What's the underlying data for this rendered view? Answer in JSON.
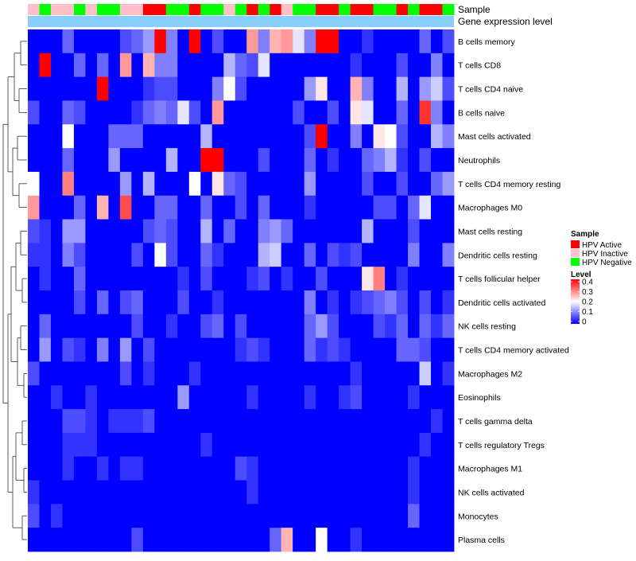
{
  "chart_data": {
    "type": "heatmap",
    "annotation_tracks": [
      "Sample",
      "Gene expression level"
    ],
    "rows": [
      "B cells memory",
      "T cells CD8",
      "T cells CD4 naive",
      "B cells naive",
      "Mast cells activated",
      "Neutrophils",
      "T cells CD4 memory resting",
      "Macrophages M0",
      "Mast cells resting",
      "Dendritic cells resting",
      "T cells follicular helper",
      "Dendritic cells activated",
      "NK cells resting",
      "T cells CD4 memory activated",
      "Macrophages M2",
      "Eosinophils",
      "T cells gamma delta",
      "T cells regulatory  Tregs",
      "Macrophages M1",
      "NK cells activated",
      "Monocytes",
      "Plasma cells"
    ],
    "column_sample_groups": [
      "HPV Inactive",
      "HPV Negative",
      "HPV Inactive",
      "HPV Inactive",
      "HPV Negative",
      "HPV Inactive",
      "HPV Negative",
      "HPV Negative",
      "HPV Inactive",
      "HPV Inactive",
      "HPV Active",
      "HPV Active",
      "HPV Negative",
      "HPV Negative",
      "HPV Active",
      "HPV Negative",
      "HPV Negative",
      "HPV Inactive",
      "HPV Negative",
      "HPV Active",
      "HPV Negative",
      "HPV Active",
      "HPV Inactive",
      "HPV Negative",
      "HPV Negative",
      "HPV Active",
      "HPV Active",
      "HPV Negative",
      "HPV Active",
      "HPV Active",
      "HPV Negative",
      "HPV Negative",
      "HPV Active",
      "HPV Negative",
      "HPV Active",
      "HPV Active",
      "HPV Negative"
    ],
    "values": [
      [
        0.0,
        0.0,
        0.0,
        0.08,
        0.0,
        0.0,
        0.0,
        0.0,
        0.06,
        0.08,
        0.12,
        0.4,
        0.1,
        0.0,
        0.4,
        0.0,
        0.06,
        0.0,
        0.0,
        0.28,
        0.1,
        0.26,
        0.28,
        0.18,
        0.1,
        0.4,
        0.4,
        0.0,
        0.0,
        0.04,
        0.0,
        0.0,
        0.0,
        0.0,
        0.08,
        0.0,
        0.06
      ],
      [
        0.0,
        0.4,
        0.0,
        0.0,
        0.08,
        0.0,
        0.08,
        0.0,
        0.28,
        0.0,
        0.26,
        0.1,
        0.1,
        0.0,
        0.0,
        0.0,
        0.0,
        0.14,
        0.08,
        0.06,
        0.18,
        0.0,
        0.0,
        0.0,
        0.0,
        0.0,
        0.0,
        0.0,
        0.04,
        0.0,
        0.0,
        0.0,
        0.06,
        0.0,
        0.0,
        0.1,
        0.0
      ],
      [
        0.0,
        0.0,
        0.0,
        0.0,
        0.0,
        0.0,
        0.4,
        0.0,
        0.0,
        0.0,
        0.04,
        0.06,
        0.06,
        0.0,
        0.0,
        0.0,
        0.1,
        0.2,
        0.06,
        0.0,
        0.0,
        0.0,
        0.0,
        0.0,
        0.12,
        0.22,
        0.0,
        0.0,
        0.26,
        0.1,
        0.0,
        0.0,
        0.14,
        0.0,
        0.12,
        0.16,
        0.06
      ],
      [
        0.06,
        0.0,
        0.0,
        0.08,
        0.06,
        0.0,
        0.0,
        0.0,
        0.0,
        0.04,
        0.08,
        0.1,
        0.08,
        0.18,
        0.06,
        0.0,
        0.28,
        0.0,
        0.0,
        0.0,
        0.0,
        0.0,
        0.0,
        0.06,
        0.0,
        0.0,
        0.06,
        0.0,
        0.22,
        0.18,
        0.0,
        0.0,
        0.08,
        0.0,
        0.36,
        0.1,
        0.0
      ],
      [
        0.0,
        0.0,
        0.0,
        0.2,
        0.0,
        0.0,
        0.0,
        0.08,
        0.08,
        0.08,
        0.0,
        0.0,
        0.0,
        0.0,
        0.0,
        0.14,
        0.0,
        0.0,
        0.0,
        0.0,
        0.0,
        0.0,
        0.0,
        0.0,
        0.06,
        0.4,
        0.0,
        0.0,
        0.1,
        0.0,
        0.22,
        0.2,
        0.06,
        0.0,
        0.0,
        0.14,
        0.1
      ],
      [
        0.0,
        0.0,
        0.0,
        0.08,
        0.0,
        0.0,
        0.0,
        0.12,
        0.0,
        0.0,
        0.0,
        0.0,
        0.14,
        0.0,
        0.0,
        0.4,
        0.4,
        0.0,
        0.0,
        0.0,
        0.06,
        0.0,
        0.0,
        0.0,
        0.08,
        0.0,
        0.04,
        0.0,
        0.0,
        0.08,
        0.1,
        0.14,
        0.04,
        0.0,
        0.06,
        0.0,
        0.0
      ],
      [
        0.2,
        0.0,
        0.0,
        0.3,
        0.0,
        0.0,
        0.0,
        0.0,
        0.12,
        0.0,
        0.14,
        0.0,
        0.0,
        0.0,
        0.2,
        0.0,
        0.22,
        0.08,
        0.06,
        0.0,
        0.0,
        0.0,
        0.0,
        0.0,
        0.12,
        0.0,
        0.0,
        0.0,
        0.0,
        0.06,
        0.0,
        0.0,
        0.06,
        0.0,
        0.0,
        0.08,
        0.12
      ],
      [
        0.28,
        0.0,
        0.0,
        0.0,
        0.08,
        0.0,
        0.26,
        0.0,
        0.34,
        0.0,
        0.0,
        0.08,
        0.08,
        0.0,
        0.0,
        0.08,
        0.0,
        0.0,
        0.06,
        0.0,
        0.08,
        0.0,
        0.0,
        0.0,
        0.04,
        0.0,
        0.0,
        0.0,
        0.0,
        0.0,
        0.06,
        0.06,
        0.0,
        0.08,
        0.18,
        0.0,
        0.0
      ],
      [
        0.06,
        0.04,
        0.0,
        0.12,
        0.12,
        0.0,
        0.0,
        0.0,
        0.0,
        0.0,
        0.06,
        0.08,
        0.06,
        0.0,
        0.0,
        0.14,
        0.0,
        0.08,
        0.0,
        0.0,
        0.1,
        0.12,
        0.08,
        0.0,
        0.0,
        0.0,
        0.0,
        0.0,
        0.0,
        0.14,
        0.0,
        0.0,
        0.0,
        0.06,
        0.0,
        0.0,
        0.0
      ],
      [
        0.04,
        0.04,
        0.0,
        0.1,
        0.06,
        0.0,
        0.0,
        0.0,
        0.0,
        0.06,
        0.0,
        0.2,
        0.06,
        0.0,
        0.0,
        0.08,
        0.04,
        0.0,
        0.0,
        0.0,
        0.14,
        0.16,
        0.0,
        0.0,
        0.08,
        0.0,
        0.06,
        0.04,
        0.06,
        0.0,
        0.0,
        0.0,
        0.0,
        0.1,
        0.0,
        0.0,
        0.1
      ],
      [
        0.0,
        0.04,
        0.0,
        0.0,
        0.08,
        0.0,
        0.0,
        0.0,
        0.0,
        0.0,
        0.0,
        0.0,
        0.0,
        0.04,
        0.0,
        0.06,
        0.0,
        0.0,
        0.0,
        0.04,
        0.06,
        0.0,
        0.04,
        0.0,
        0.0,
        0.06,
        0.0,
        0.0,
        0.0,
        0.22,
        0.3,
        0.0,
        0.04,
        0.0,
        0.0,
        0.0,
        0.0
      ],
      [
        0.0,
        0.0,
        0.0,
        0.0,
        0.06,
        0.0,
        0.08,
        0.0,
        0.06,
        0.08,
        0.0,
        0.0,
        0.0,
        0.06,
        0.0,
        0.0,
        0.04,
        0.0,
        0.0,
        0.0,
        0.0,
        0.0,
        0.0,
        0.0,
        0.1,
        0.0,
        0.04,
        0.0,
        0.04,
        0.06,
        0.08,
        0.1,
        0.06,
        0.0,
        0.06,
        0.0,
        0.04
      ],
      [
        0.0,
        0.08,
        0.0,
        0.0,
        0.0,
        0.0,
        0.0,
        0.0,
        0.0,
        0.06,
        0.0,
        0.0,
        0.04,
        0.0,
        0.0,
        0.06,
        0.08,
        0.0,
        0.06,
        0.0,
        0.0,
        0.0,
        0.0,
        0.0,
        0.08,
        0.12,
        0.06,
        0.0,
        0.0,
        0.0,
        0.06,
        0.04,
        0.08,
        0.0,
        0.08,
        0.04,
        0.08
      ],
      [
        0.0,
        0.12,
        0.0,
        0.06,
        0.04,
        0.0,
        0.1,
        0.0,
        0.12,
        0.0,
        0.06,
        0.0,
        0.0,
        0.0,
        0.0,
        0.0,
        0.0,
        0.0,
        0.04,
        0.06,
        0.04,
        0.0,
        0.0,
        0.0,
        0.08,
        0.04,
        0.06,
        0.04,
        0.0,
        0.0,
        0.0,
        0.0,
        0.08,
        0.08,
        0.06,
        0.0,
        0.0
      ],
      [
        0.06,
        0.0,
        0.0,
        0.0,
        0.0,
        0.0,
        0.0,
        0.0,
        0.06,
        0.0,
        0.04,
        0.0,
        0.0,
        0.0,
        0.04,
        0.0,
        0.0,
        0.0,
        0.0,
        0.0,
        0.0,
        0.0,
        0.0,
        0.0,
        0.0,
        0.0,
        0.0,
        0.0,
        0.04,
        0.0,
        0.0,
        0.0,
        0.0,
        0.0,
        0.16,
        0.0,
        0.04
      ],
      [
        0.0,
        0.0,
        0.04,
        0.0,
        0.0,
        0.04,
        0.0,
        0.0,
        0.0,
        0.0,
        0.0,
        0.0,
        0.0,
        0.12,
        0.0,
        0.0,
        0.0,
        0.0,
        0.0,
        0.04,
        0.0,
        0.0,
        0.0,
        0.0,
        0.04,
        0.0,
        0.0,
        0.04,
        0.06,
        0.0,
        0.0,
        0.0,
        0.0,
        0.04,
        0.0,
        0.0,
        0.0
      ],
      [
        0.0,
        0.0,
        0.0,
        0.06,
        0.06,
        0.04,
        0.0,
        0.04,
        0.04,
        0.04,
        0.06,
        0.0,
        0.0,
        0.0,
        0.0,
        0.0,
        0.0,
        0.0,
        0.0,
        0.0,
        0.0,
        0.0,
        0.0,
        0.0,
        0.0,
        0.0,
        0.0,
        0.0,
        0.0,
        0.0,
        0.0,
        0.0,
        0.0,
        0.0,
        0.0,
        0.04,
        0.0
      ],
      [
        0.0,
        0.0,
        0.0,
        0.04,
        0.04,
        0.04,
        0.0,
        0.0,
        0.0,
        0.0,
        0.0,
        0.0,
        0.0,
        0.0,
        0.0,
        0.04,
        0.0,
        0.0,
        0.0,
        0.0,
        0.0,
        0.0,
        0.0,
        0.0,
        0.0,
        0.0,
        0.0,
        0.0,
        0.0,
        0.0,
        0.0,
        0.0,
        0.0,
        0.0,
        0.04,
        0.0,
        0.0
      ],
      [
        0.0,
        0.0,
        0.0,
        0.04,
        0.0,
        0.0,
        0.04,
        0.0,
        0.04,
        0.04,
        0.0,
        0.0,
        0.0,
        0.0,
        0.0,
        0.0,
        0.0,
        0.0,
        0.06,
        0.04,
        0.0,
        0.0,
        0.0,
        0.0,
        0.0,
        0.0,
        0.0,
        0.0,
        0.0,
        0.0,
        0.0,
        0.0,
        0.0,
        0.04,
        0.0,
        0.0,
        0.0
      ],
      [
        0.04,
        0.0,
        0.0,
        0.0,
        0.0,
        0.0,
        0.0,
        0.0,
        0.0,
        0.0,
        0.0,
        0.0,
        0.0,
        0.0,
        0.0,
        0.0,
        0.0,
        0.0,
        0.0,
        0.04,
        0.0,
        0.0,
        0.0,
        0.0,
        0.0,
        0.0,
        0.0,
        0.0,
        0.0,
        0.0,
        0.0,
        0.0,
        0.0,
        0.04,
        0.0,
        0.0,
        0.0
      ],
      [
        0.06,
        0.0,
        0.04,
        0.0,
        0.0,
        0.0,
        0.0,
        0.0,
        0.0,
        0.0,
        0.0,
        0.0,
        0.0,
        0.0,
        0.0,
        0.0,
        0.0,
        0.0,
        0.0,
        0.0,
        0.0,
        0.0,
        0.0,
        0.0,
        0.0,
        0.0,
        0.0,
        0.0,
        0.0,
        0.0,
        0.0,
        0.0,
        0.0,
        0.08,
        0.0,
        0.0,
        0.0
      ],
      [
        0.0,
        0.0,
        0.0,
        0.0,
        0.0,
        0.0,
        0.0,
        0.0,
        0.0,
        0.06,
        0.0,
        0.0,
        0.0,
        0.0,
        0.0,
        0.0,
        0.0,
        0.0,
        0.0,
        0.0,
        0.0,
        0.08,
        0.26,
        0.0,
        0.0,
        0.2,
        0.0,
        0.0,
        0.04,
        0.0,
        0.0,
        0.0,
        0.0,
        0.0,
        0.0,
        0.0,
        0.0
      ]
    ],
    "color_scale": {
      "min": 0,
      "max": 0.4,
      "low": "#0000ff",
      "mid": "#ffffff",
      "high": "#ff0000",
      "mid_value": 0.2
    },
    "gene_expression_color": "#87cefa",
    "legend": {
      "placement": "right",
      "sample_title": "Sample",
      "sample_items": [
        {
          "label": "HPV Active",
          "color": "#ff0000"
        },
        {
          "label": "HPV Inactive",
          "color": "#ffc0cb"
        },
        {
          "label": "HPV Negative",
          "color": "#00ff00"
        }
      ],
      "level_title": "Level",
      "level_ticks": [
        "0.4",
        "0.3",
        "0.2",
        "0.1",
        "0"
      ]
    }
  }
}
